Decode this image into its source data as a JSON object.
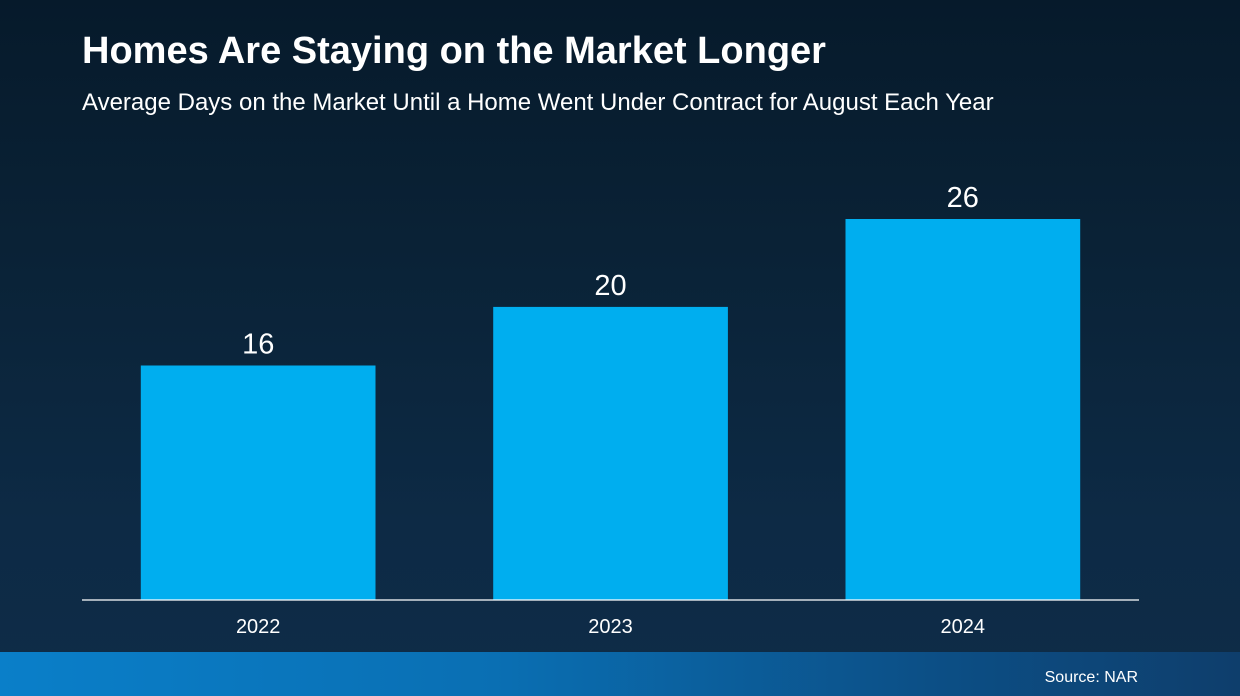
{
  "chart_data": {
    "type": "bar",
    "title": "Homes Are Staying on the Market Longer",
    "subtitle": "Average Days on the Market Until a Home Went Under Contract for August Each Year",
    "categories": [
      "2022",
      "2023",
      "2024"
    ],
    "values": [
      16,
      20,
      26
    ],
    "data_labels": [
      "16",
      "20",
      "26"
    ],
    "xlabel": "",
    "ylabel": "",
    "ylim": [
      0,
      26
    ],
    "grid": false,
    "legend": "none",
    "bar_color": "#00aeef",
    "source": "Source: NAR"
  }
}
